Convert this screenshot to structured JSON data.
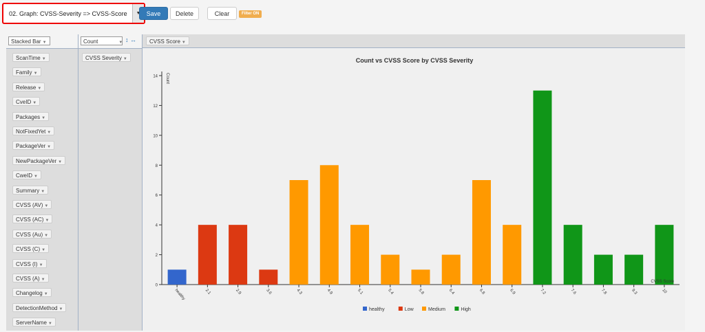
{
  "toolbar": {
    "view_select": "02. Graph: CVSS-Severity => CVSS-Score",
    "save_label": "Save",
    "delete_label": "Delete",
    "clear_label": "Clear",
    "filter_badge": "Filter ON"
  },
  "pivot": {
    "renderer": "Stacked Bar",
    "aggregator": "Count",
    "columns": [
      "CVSS Score"
    ],
    "rows": [
      "CVSS Severity"
    ],
    "attributes": [
      "ScanTime",
      "Family",
      "Release",
      "CveID",
      "Packages",
      "NotFixedYet",
      "PackageVer",
      "NewPackageVer",
      "CweID",
      "Summary",
      "CVSS (AV)",
      "CVSS (AC)",
      "CVSS (Au)",
      "CVSS (C)",
      "CVSS (I)",
      "CVSS (A)",
      "Changelog",
      "DetectionMethod",
      "ServerName"
    ]
  },
  "chart_data": {
    "type": "bar",
    "stacked": true,
    "title": "Count vs CVSS Score by CVSS Severity",
    "xlabel": "CVSS Score",
    "ylabel": "Count",
    "ylim": [
      0,
      14
    ],
    "yticks": [
      "0",
      "2",
      "4",
      "6",
      "8",
      "10",
      "12",
      "14"
    ],
    "categories": [
      "healthy",
      "2.1",
      "2.9",
      "3.6",
      "4.3",
      "4.9",
      "5.1",
      "5.4",
      "5.8",
      "6.4",
      "6.8",
      "6.9",
      "7.2",
      "7.6",
      "7.8",
      "9.3",
      "10"
    ],
    "series": [
      {
        "name": "healthy",
        "color": "#3366cc",
        "values": [
          1,
          0,
          0,
          0,
          0,
          0,
          0,
          0,
          0,
          0,
          0,
          0,
          0,
          0,
          0,
          0,
          0
        ]
      },
      {
        "name": "Low",
        "color": "#dc3912",
        "values": [
          0,
          4,
          4,
          1,
          0,
          0,
          0,
          0,
          0,
          0,
          0,
          0,
          0,
          0,
          0,
          0,
          0
        ]
      },
      {
        "name": "Medium",
        "color": "#ff9900",
        "values": [
          0,
          0,
          0,
          0,
          7,
          8,
          4,
          2,
          1,
          2,
          7,
          4,
          0,
          0,
          0,
          0,
          0
        ]
      },
      {
        "name": "High",
        "color": "#109618",
        "values": [
          0,
          0,
          0,
          0,
          0,
          0,
          0,
          0,
          0,
          0,
          0,
          0,
          13,
          4,
          2,
          2,
          4
        ]
      }
    ],
    "legend_position": "bottom"
  }
}
